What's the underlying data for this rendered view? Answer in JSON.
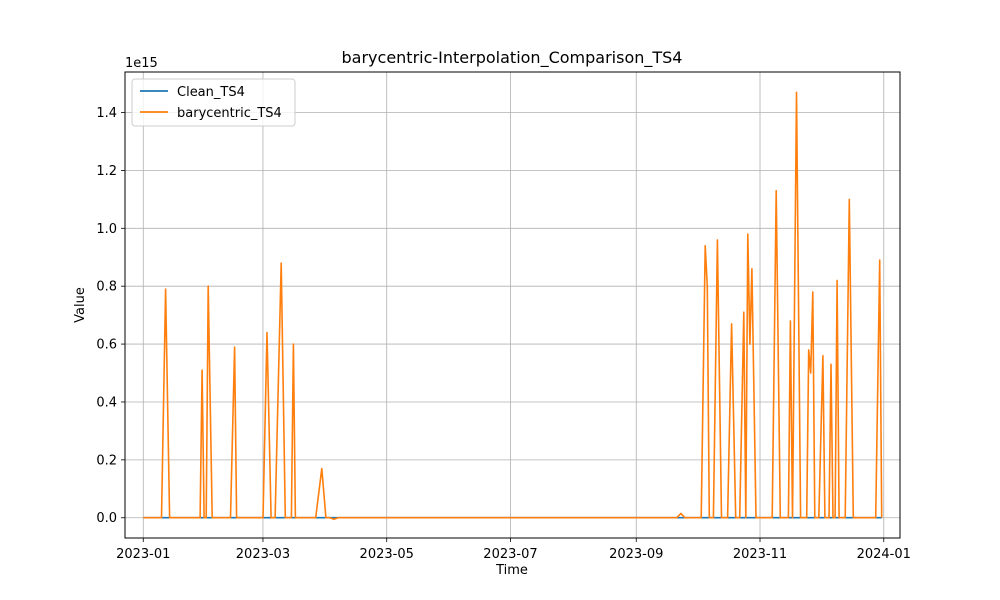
{
  "chart_data": {
    "type": "line",
    "title": "barycentric-Interpolation_Comparison_TS4",
    "xlabel": "Time",
    "ylabel": "Value",
    "y_scale_label": "1e15",
    "y_multiplier": 1000000000000000.0,
    "xlim": [
      "2022-12-23",
      "2024-01-09"
    ],
    "ylim": [
      -0.07,
      1.54
    ],
    "x_ticks": [
      "2023-01",
      "2023-03",
      "2023-05",
      "2023-07",
      "2023-09",
      "2023-11",
      "2024-01"
    ],
    "y_ticks": [
      "0.0",
      "0.2",
      "0.4",
      "0.6",
      "0.8",
      "1.0",
      "1.2",
      "1.4"
    ],
    "y_tick_values": [
      0.0,
      0.2,
      0.4,
      0.6,
      0.8,
      1.0,
      1.2,
      1.4
    ],
    "grid": true,
    "legend_position": "top-left",
    "series": [
      {
        "name": "Clean_TS4",
        "color": "#1f77b4",
        "points": [
          [
            "2023-01-01",
            0
          ],
          [
            "2023-12-31",
            0
          ]
        ]
      },
      {
        "name": "barycentric_TS4",
        "color": "#ff7f0e",
        "points": [
          [
            "2023-01-01",
            0
          ],
          [
            "2023-01-10",
            0
          ],
          [
            "2023-01-12",
            0.79
          ],
          [
            "2023-01-14",
            0
          ],
          [
            "2023-01-29",
            0
          ],
          [
            "2023-01-30",
            0.51
          ],
          [
            "2023-01-31",
            0
          ],
          [
            "2023-02-01",
            0
          ],
          [
            "2023-02-02",
            0.8
          ],
          [
            "2023-02-04",
            0
          ],
          [
            "2023-02-13",
            0
          ],
          [
            "2023-02-15",
            0.59
          ],
          [
            "2023-02-16",
            0
          ],
          [
            "2023-03-01",
            0
          ],
          [
            "2023-03-03",
            0.64
          ],
          [
            "2023-03-05",
            0
          ],
          [
            "2023-03-07",
            0
          ],
          [
            "2023-03-10",
            0.88
          ],
          [
            "2023-03-12",
            0
          ],
          [
            "2023-03-15",
            0
          ],
          [
            "2023-03-16",
            0.6
          ],
          [
            "2023-03-17",
            0
          ],
          [
            "2023-03-27",
            0
          ],
          [
            "2023-03-30",
            0.17
          ],
          [
            "2023-04-01",
            0
          ],
          [
            "2023-04-03",
            0
          ],
          [
            "2023-04-05",
            -0.005
          ],
          [
            "2023-04-07",
            0
          ],
          [
            "2023-09-21",
            0
          ],
          [
            "2023-09-23",
            0.015
          ],
          [
            "2023-09-25",
            0
          ],
          [
            "2023-10-03",
            0
          ],
          [
            "2023-10-05",
            0.94
          ],
          [
            "2023-10-06",
            0.8
          ],
          [
            "2023-10-07",
            0
          ],
          [
            "2023-10-09",
            0
          ],
          [
            "2023-10-11",
            0.96
          ],
          [
            "2023-10-13",
            0
          ],
          [
            "2023-10-16",
            0
          ],
          [
            "2023-10-18",
            0.67
          ],
          [
            "2023-10-20",
            0
          ],
          [
            "2023-10-22",
            0
          ],
          [
            "2023-10-24",
            0.71
          ],
          [
            "2023-10-25",
            0
          ],
          [
            "2023-10-26",
            0.98
          ],
          [
            "2023-10-27",
            0.6
          ],
          [
            "2023-10-28",
            0.86
          ],
          [
            "2023-10-30",
            0
          ],
          [
            "2023-11-07",
            0
          ],
          [
            "2023-11-09",
            1.13
          ],
          [
            "2023-11-11",
            0
          ],
          [
            "2023-11-15",
            0
          ],
          [
            "2023-11-16",
            0.68
          ],
          [
            "2023-11-17",
            0
          ],
          [
            "2023-11-19",
            1.47
          ],
          [
            "2023-11-21",
            0
          ],
          [
            "2023-11-24",
            0
          ],
          [
            "2023-11-25",
            0.58
          ],
          [
            "2023-11-26",
            0.5
          ],
          [
            "2023-11-27",
            0.78
          ],
          [
            "2023-11-28",
            0
          ],
          [
            "2023-11-30",
            0
          ],
          [
            "2023-12-02",
            0.56
          ],
          [
            "2023-12-03",
            0
          ],
          [
            "2023-12-05",
            0
          ],
          [
            "2023-12-06",
            0.53
          ],
          [
            "2023-12-07",
            0
          ],
          [
            "2023-12-08",
            0
          ],
          [
            "2023-12-09",
            0.82
          ],
          [
            "2023-12-10",
            0
          ],
          [
            "2023-12-13",
            0
          ],
          [
            "2023-12-15",
            1.1
          ],
          [
            "2023-12-17",
            0
          ],
          [
            "2023-12-28",
            0
          ],
          [
            "2023-12-30",
            0.89
          ],
          [
            "2023-12-31",
            0
          ]
        ]
      }
    ]
  }
}
